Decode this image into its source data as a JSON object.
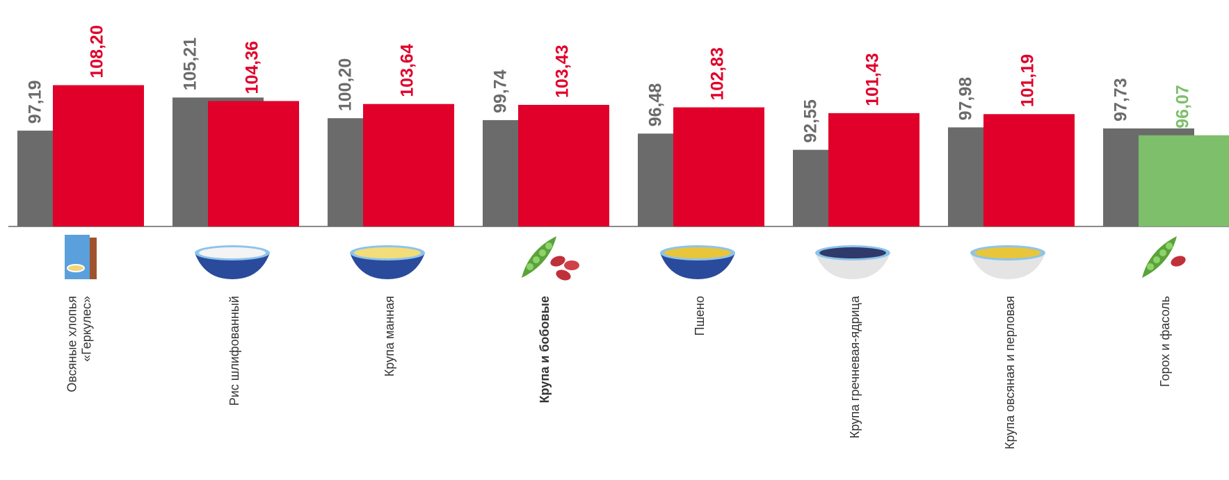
{
  "chart_data": {
    "type": "bar",
    "categories": [
      "Овсяные хлопья\n«Геркулес»",
      "Рис шлифованный",
      "Крупа манная",
      "Крупа и бобовые",
      "Пшено",
      "Крупа гречневая-ядрица",
      "Крупа овсяная и перловая",
      "Горох и фасоль"
    ],
    "category_bold": [
      false,
      false,
      false,
      true,
      false,
      false,
      false,
      false
    ],
    "series": [
      {
        "color": "#6b6b6b",
        "values": [
          97.19,
          105.21,
          100.2,
          99.74,
          96.48,
          92.55,
          97.98,
          97.73
        ],
        "value_labels": [
          "97,19",
          "105,21",
          "100,20",
          "99,74",
          "96,48",
          "92,55",
          "97,98",
          "97,73"
        ]
      },
      {
        "colors": [
          "#e0002a",
          "#e0002a",
          "#e0002a",
          "#e0002a",
          "#e0002a",
          "#e0002a",
          "#e0002a",
          "#7dbf6a"
        ],
        "values": [
          108.2,
          104.36,
          103.64,
          103.43,
          102.83,
          101.43,
          101.19,
          96.07
        ],
        "value_labels": [
          "108,20",
          "104,36",
          "103,64",
          "103,43",
          "102,83",
          "101,43",
          "101,19",
          "96,07"
        ]
      }
    ],
    "ylim": [
      74,
      112
    ]
  }
}
